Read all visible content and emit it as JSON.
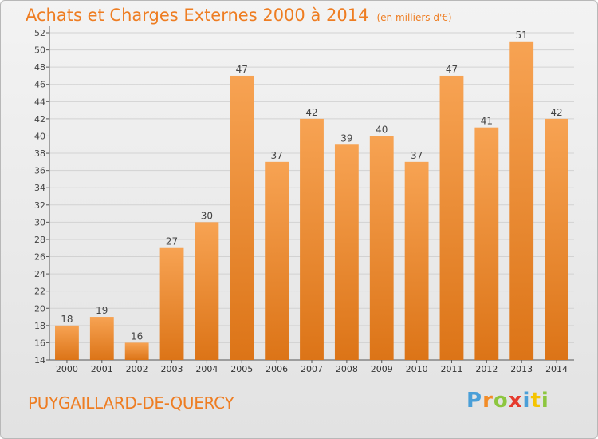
{
  "header": {
    "title": "Achats et Charges Externes 2000 à 2014",
    "unit": "(en milliers d'€)"
  },
  "footer": {
    "commune": "PUYGAILLARD-DE-QUERCY",
    "logo_letters": [
      {
        "ch": "P",
        "color": "#4a9fd8"
      },
      {
        "ch": "r",
        "color": "#f28c28"
      },
      {
        "ch": "o",
        "color": "#8dc63f"
      },
      {
        "ch": "x",
        "color": "#e63b2e"
      },
      {
        "ch": "i",
        "color": "#4a9fd8"
      },
      {
        "ch": "t",
        "color": "#f5c400"
      },
      {
        "ch": "i",
        "color": "#8dc63f"
      }
    ]
  },
  "colors": {
    "title": "#ee7d22",
    "bar_top": "#f7a353",
    "bar_bottom": "#dc7417",
    "grid": "#d2d2d2"
  },
  "chart_data": {
    "type": "bar",
    "title": "Achats et Charges Externes 2000 à 2014",
    "subtitle": "(en milliers d'€)",
    "xlabel": "",
    "ylabel": "",
    "categories": [
      "2000",
      "2001",
      "2002",
      "2003",
      "2004",
      "2005",
      "2006",
      "2007",
      "2008",
      "2009",
      "2010",
      "2011",
      "2012",
      "2013",
      "2014"
    ],
    "values": [
      18,
      19,
      16,
      27,
      30,
      47,
      37,
      42,
      39,
      40,
      37,
      47,
      41,
      51,
      42
    ],
    "ylim": [
      14,
      52
    ],
    "yticks": [
      14,
      16,
      18,
      20,
      22,
      24,
      26,
      28,
      30,
      32,
      34,
      36,
      38,
      40,
      42,
      44,
      46,
      48,
      50,
      52
    ],
    "grid": true,
    "data_labels": true
  }
}
